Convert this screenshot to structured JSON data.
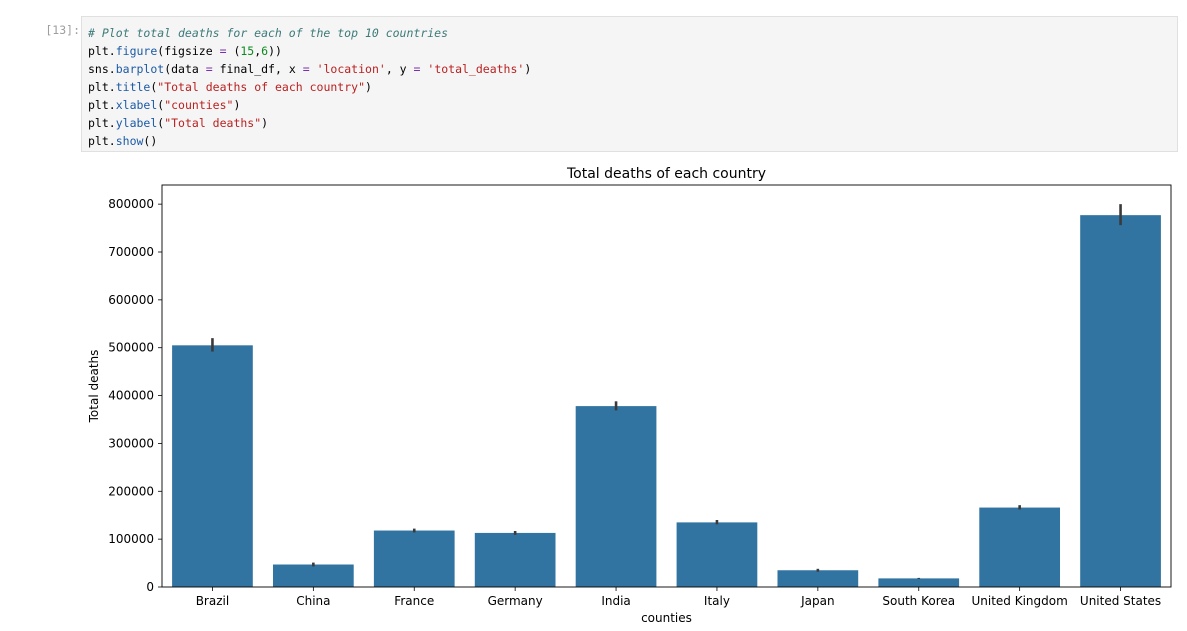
{
  "cell": {
    "prompt": "[13]:",
    "code": [
      [
        {
          "t": "# Plot total deaths for each of the top 10 countries",
          "c": "comment"
        }
      ],
      [
        {
          "t": "plt",
          "c": "name"
        },
        {
          "t": ".",
          "c": "name"
        },
        {
          "t": "figure",
          "c": "attr"
        },
        {
          "t": "(figsize ",
          "c": "name"
        },
        {
          "t": "=",
          "c": "op"
        },
        {
          "t": " (",
          "c": "name"
        },
        {
          "t": "15",
          "c": "num"
        },
        {
          "t": ",",
          "c": "name"
        },
        {
          "t": "6",
          "c": "num"
        },
        {
          "t": "))",
          "c": "name"
        }
      ],
      [
        {
          "t": "sns",
          "c": "name"
        },
        {
          "t": ".",
          "c": "name"
        },
        {
          "t": "barplot",
          "c": "attr"
        },
        {
          "t": "(data ",
          "c": "name"
        },
        {
          "t": "=",
          "c": "op"
        },
        {
          "t": " final_df, x ",
          "c": "name"
        },
        {
          "t": "=",
          "c": "op"
        },
        {
          "t": " ",
          "c": "name"
        },
        {
          "t": "'location'",
          "c": "str"
        },
        {
          "t": ", y ",
          "c": "name"
        },
        {
          "t": "=",
          "c": "op"
        },
        {
          "t": " ",
          "c": "name"
        },
        {
          "t": "'total_deaths'",
          "c": "str"
        },
        {
          "t": ")",
          "c": "name"
        }
      ],
      [
        {
          "t": "plt",
          "c": "name"
        },
        {
          "t": ".",
          "c": "name"
        },
        {
          "t": "title",
          "c": "attr"
        },
        {
          "t": "(",
          "c": "name"
        },
        {
          "t": "\"Total deaths of each country\"",
          "c": "str"
        },
        {
          "t": ")",
          "c": "name"
        }
      ],
      [
        {
          "t": "plt",
          "c": "name"
        },
        {
          "t": ".",
          "c": "name"
        },
        {
          "t": "xlabel",
          "c": "attr"
        },
        {
          "t": "(",
          "c": "name"
        },
        {
          "t": "\"counties\"",
          "c": "str"
        },
        {
          "t": ")",
          "c": "name"
        }
      ],
      [
        {
          "t": "plt",
          "c": "name"
        },
        {
          "t": ".",
          "c": "name"
        },
        {
          "t": "ylabel",
          "c": "attr"
        },
        {
          "t": "(",
          "c": "name"
        },
        {
          "t": "\"Total deaths\"",
          "c": "str"
        },
        {
          "t": ")",
          "c": "name"
        }
      ],
      [
        {
          "t": "plt",
          "c": "name"
        },
        {
          "t": ".",
          "c": "name"
        },
        {
          "t": "show",
          "c": "attr"
        },
        {
          "t": "()",
          "c": "name"
        }
      ]
    ]
  },
  "chart_data": {
    "type": "bar",
    "title": "Total deaths of each country",
    "xlabel": "counties",
    "ylabel": "Total deaths",
    "categories": [
      "Brazil",
      "China",
      "France",
      "Germany",
      "India",
      "Italy",
      "Japan",
      "South Korea",
      "United Kingdom",
      "United States"
    ],
    "values": [
      505000,
      47000,
      118000,
      113000,
      378000,
      135000,
      35000,
      18000,
      166000,
      777000
    ],
    "error_low": [
      492000,
      43000,
      114000,
      109000,
      369000,
      131000,
      32000,
      17000,
      162000,
      756000
    ],
    "error_high": [
      520000,
      51000,
      122000,
      117000,
      388000,
      140000,
      38000,
      19000,
      171000,
      800000
    ],
    "ylim": [
      0,
      840000
    ],
    "yticks": [
      0,
      100000,
      200000,
      300000,
      400000,
      500000,
      600000,
      700000,
      800000
    ],
    "ytick_labels": [
      "0",
      "100000",
      "200000",
      "300000",
      "400000",
      "500000",
      "600000",
      "700000",
      "800000"
    ],
    "bar_color": "#3274a1",
    "error_color": "#3a3a3a",
    "grid": false,
    "legend": "none"
  }
}
